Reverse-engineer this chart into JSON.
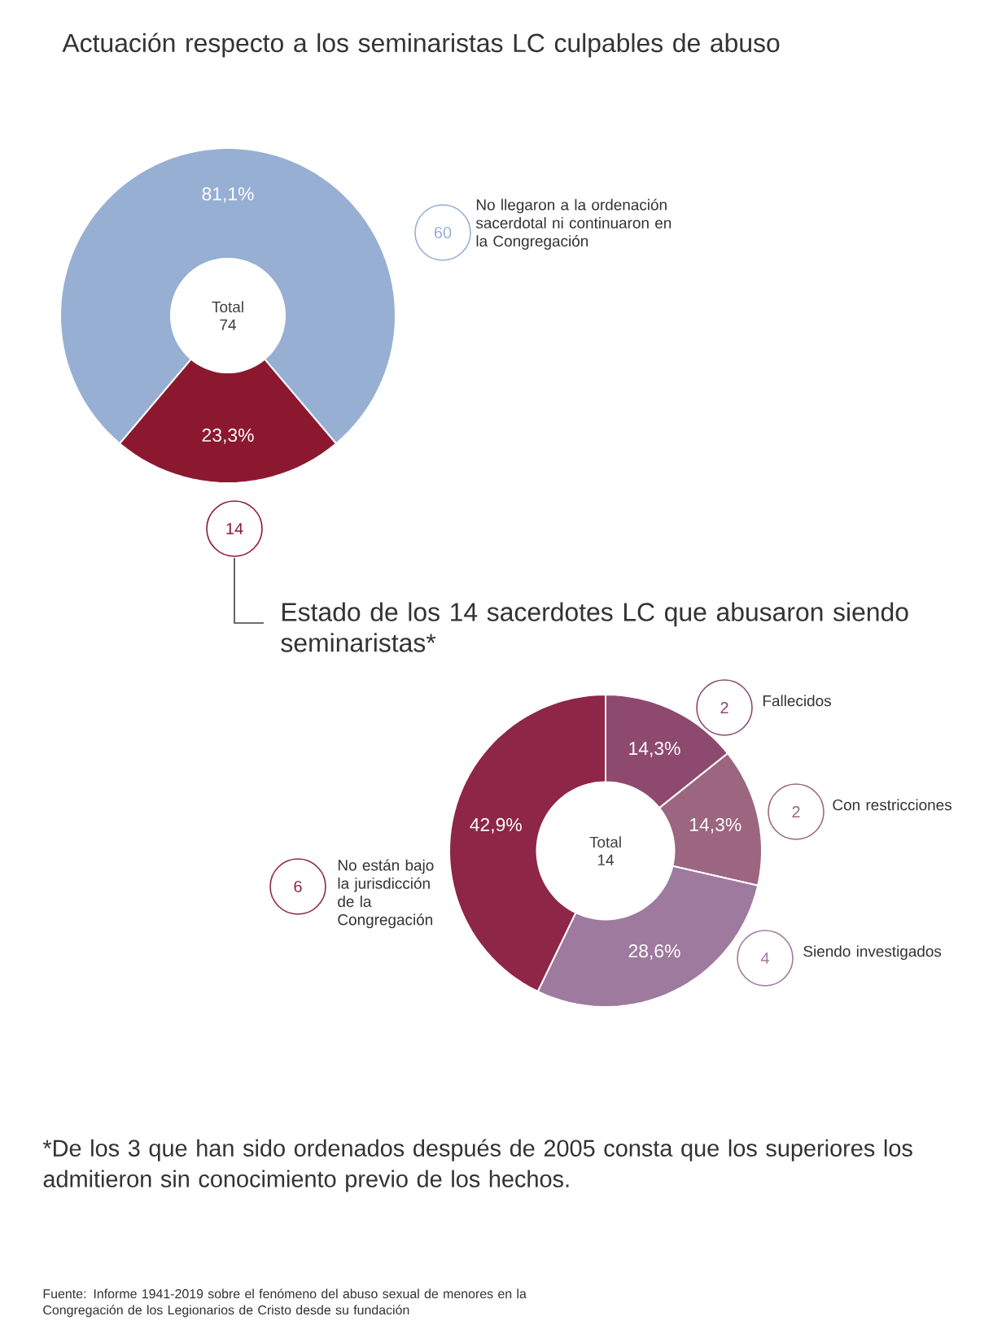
{
  "chart_data": [
    {
      "type": "donut",
      "title": "Actuación respecto a los seminaristas LC culpables de abuso",
      "categories": [
        "No llegaron a la ordenación sacerdotal ni continuaron en la Congregación",
        null
      ],
      "values": [
        81.1,
        23.3
      ],
      "value_labels": [
        "81,1%",
        "23,3%"
      ],
      "colors": [
        "#97afd3",
        "#8c1830"
      ],
      "legend": "right",
      "annotations": [
        "Total 74",
        "60",
        "14"
      ]
    },
    {
      "type": "donut",
      "title": "Estado de los 14 sacerdotes LC que abusaron siendo seminaristas*",
      "categories": [
        "Fallecidos",
        "Con restricciones",
        "Siendo investigados",
        "No están bajo la jurisdicción de la Congregación"
      ],
      "values": [
        14.3,
        14.3,
        28.6,
        42.9
      ],
      "value_labels": [
        "14,3%",
        "14,3%",
        "28,6%",
        "42,9%"
      ],
      "colors": [
        "#8e4a6e",
        "#9c6680",
        "#9e7a9e",
        "#8e2648"
      ],
      "legend": "right",
      "annotations": [
        "Total 14",
        "2",
        "2",
        "4",
        "6",
        "*De los 3 que han sido ordenados después de 2005 consta que los superiores los admitieron sin conocimiento previo de los hechos.",
        "Fuente: Informe 1941-2019 sobre el fenómeno del abuso sexual de menores en la Congregación de los Legionarios de Cristo desde su fundación"
      ]
    }
  ]
}
